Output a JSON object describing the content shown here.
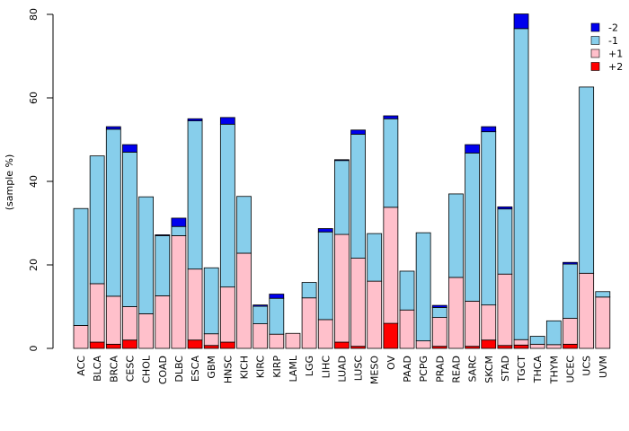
{
  "chart_data": {
    "type": "bar",
    "stacked": true,
    "title": "",
    "xlabel": "",
    "ylabel": "(sample %)",
    "ylim": [
      0,
      80
    ],
    "yticks": [
      0,
      20,
      40,
      60,
      80
    ],
    "legend_position": "top-right",
    "categories": [
      "ACC",
      "BLCA",
      "BRCA",
      "CESC",
      "CHOL",
      "COAD",
      "DLBC",
      "ESCA",
      "GBM",
      "HNSC",
      "KICH",
      "KIRC",
      "KIRP",
      "LAML",
      "LGG",
      "LIHC",
      "LUAD",
      "LUSC",
      "MESO",
      "OV",
      "PAAD",
      "PCPG",
      "PRAD",
      "READ",
      "SARC",
      "SKCM",
      "STAD",
      "TGCT",
      "THCA",
      "THYM",
      "UCEC",
      "UCS",
      "UVM"
    ],
    "series": [
      {
        "name": "+2",
        "color": "#ff0000",
        "values": [
          0,
          1.5,
          1,
          2,
          0,
          0,
          0,
          2,
          0.7,
          1.5,
          0,
          0,
          0,
          0,
          0,
          0,
          1.5,
          0.5,
          0,
          6,
          0,
          0,
          0.5,
          0,
          0.5,
          2,
          0.7,
          0.8,
          0,
          0,
          1,
          0,
          0
        ]
      },
      {
        "name": "+1",
        "color": "#ffc0cb",
        "values": [
          5.5,
          14,
          11.5,
          8,
          8.3,
          12.6,
          27,
          17,
          2.8,
          13.2,
          22.8,
          5.9,
          3.4,
          3.6,
          12.1,
          6.9,
          25.8,
          21.1,
          16.1,
          27.8,
          9.2,
          1.8,
          6.9,
          17,
          10.8,
          8.4,
          17.1,
          1.3,
          1,
          0.9,
          6.2,
          18,
          12.3
        ]
      },
      {
        "name": "-1",
        "color": "#87ceeb",
        "values": [
          28,
          30.6,
          40,
          37,
          28,
          14.4,
          2.2,
          35.5,
          15.8,
          39,
          13.6,
          4.2,
          8.6,
          0,
          3.7,
          21,
          17.7,
          29.7,
          11.4,
          21.2,
          9.3,
          25.9,
          2.4,
          20,
          35.5,
          41.5,
          15.6,
          74.5,
          1.9,
          5.7,
          13,
          44.6,
          1.3
        ]
      },
      {
        "name": "-2",
        "color": "#0000ee",
        "values": [
          0,
          0,
          0.6,
          1.8,
          0,
          0.2,
          2,
          0.5,
          0,
          1.6,
          0,
          0.3,
          1,
          0,
          0,
          0.8,
          0.2,
          1,
          0,
          0.7,
          0,
          0,
          0.5,
          0,
          2,
          1.2,
          0.5,
          3.5,
          0,
          0,
          0.4,
          0,
          0
        ]
      }
    ],
    "legend_order": [
      "-2",
      "-1",
      "+1",
      "+2"
    ]
  }
}
